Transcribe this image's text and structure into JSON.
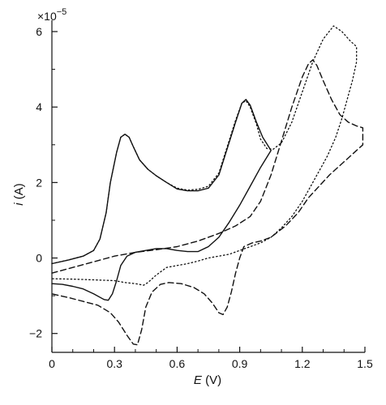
{
  "chart_data": {
    "type": "line",
    "title": "",
    "xlabel": "E",
    "xlabel_unit": "(V)",
    "ylabel": "i",
    "ylabel_unit": "(A)",
    "y_multiplier_base": "×10",
    "y_multiplier_exp": "−5",
    "xlim": [
      0,
      1.5
    ],
    "ylim": [
      -2.5,
      6.3
    ],
    "x_ticks": [
      0,
      0.3,
      0.6,
      0.9,
      1.2,
      1.5
    ],
    "x_tick_labels": [
      "0",
      "0.3",
      "0.6",
      "0.9",
      "1.2",
      "1.5"
    ],
    "y_ticks": [
      -2,
      0,
      2,
      4,
      6
    ],
    "y_tick_labels": [
      "−2",
      "0",
      "2",
      "4",
      "6"
    ],
    "grid": false,
    "legend": "none",
    "series": [
      {
        "style": "solid",
        "color": "#111111",
        "points": [
          [
            0.0,
            -0.15
          ],
          [
            0.08,
            -0.05
          ],
          [
            0.15,
            0.05
          ],
          [
            0.2,
            0.2
          ],
          [
            0.23,
            0.5
          ],
          [
            0.26,
            1.2
          ],
          [
            0.28,
            2.0
          ],
          [
            0.31,
            2.8
          ],
          [
            0.33,
            3.2
          ],
          [
            0.35,
            3.28
          ],
          [
            0.37,
            3.2
          ],
          [
            0.39,
            2.95
          ],
          [
            0.42,
            2.6
          ],
          [
            0.46,
            2.35
          ],
          [
            0.5,
            2.18
          ],
          [
            0.55,
            2.0
          ],
          [
            0.6,
            1.83
          ],
          [
            0.65,
            1.78
          ],
          [
            0.7,
            1.78
          ],
          [
            0.75,
            1.85
          ],
          [
            0.8,
            2.2
          ],
          [
            0.84,
            2.9
          ],
          [
            0.88,
            3.6
          ],
          [
            0.91,
            4.1
          ],
          [
            0.93,
            4.2
          ],
          [
            0.95,
            4.05
          ],
          [
            0.98,
            3.6
          ],
          [
            1.01,
            3.2
          ],
          [
            1.05,
            2.85
          ],
          [
            1.0,
            2.4
          ],
          [
            0.95,
            1.9
          ],
          [
            0.9,
            1.4
          ],
          [
            0.85,
            0.95
          ],
          [
            0.8,
            0.55
          ],
          [
            0.75,
            0.3
          ],
          [
            0.7,
            0.17
          ],
          [
            0.65,
            0.17
          ],
          [
            0.6,
            0.2
          ],
          [
            0.55,
            0.25
          ],
          [
            0.5,
            0.25
          ],
          [
            0.45,
            0.2
          ],
          [
            0.4,
            0.15
          ],
          [
            0.36,
            0.05
          ],
          [
            0.33,
            -0.2
          ],
          [
            0.31,
            -0.6
          ],
          [
            0.29,
            -0.95
          ],
          [
            0.27,
            -1.12
          ],
          [
            0.25,
            -1.1
          ],
          [
            0.2,
            -0.95
          ],
          [
            0.15,
            -0.82
          ],
          [
            0.1,
            -0.75
          ],
          [
            0.05,
            -0.7
          ],
          [
            0.0,
            -0.68
          ]
        ]
      },
      {
        "style": "dotted",
        "color": "#111111",
        "points": [
          [
            0.0,
            -0.15
          ],
          [
            0.08,
            -0.05
          ],
          [
            0.15,
            0.05
          ],
          [
            0.2,
            0.2
          ],
          [
            0.23,
            0.5
          ],
          [
            0.26,
            1.2
          ],
          [
            0.28,
            2.0
          ],
          [
            0.31,
            2.8
          ],
          [
            0.33,
            3.2
          ],
          [
            0.35,
            3.28
          ],
          [
            0.37,
            3.2
          ],
          [
            0.39,
            2.95
          ],
          [
            0.42,
            2.6
          ],
          [
            0.46,
            2.35
          ],
          [
            0.5,
            2.18
          ],
          [
            0.55,
            2.0
          ],
          [
            0.6,
            1.85
          ],
          [
            0.65,
            1.8
          ],
          [
            0.7,
            1.82
          ],
          [
            0.75,
            1.9
          ],
          [
            0.8,
            2.25
          ],
          [
            0.84,
            2.95
          ],
          [
            0.88,
            3.65
          ],
          [
            0.91,
            4.1
          ],
          [
            0.93,
            4.17
          ],
          [
            0.95,
            4.0
          ],
          [
            0.98,
            3.55
          ],
          [
            1.0,
            3.15
          ],
          [
            1.03,
            2.9
          ],
          [
            1.06,
            2.88
          ],
          [
            1.1,
            3.05
          ],
          [
            1.15,
            3.6
          ],
          [
            1.2,
            4.4
          ],
          [
            1.25,
            5.2
          ],
          [
            1.3,
            5.8
          ],
          [
            1.35,
            6.15
          ],
          [
            1.39,
            6.0
          ],
          [
            1.43,
            5.75
          ],
          [
            1.46,
            5.6
          ],
          [
            1.46,
            5.2
          ],
          [
            1.44,
            4.7
          ],
          [
            1.42,
            4.3
          ],
          [
            1.39,
            3.7
          ],
          [
            1.36,
            3.2
          ],
          [
            1.32,
            2.7
          ],
          [
            1.28,
            2.3
          ],
          [
            1.24,
            1.9
          ],
          [
            1.2,
            1.5
          ],
          [
            1.15,
            1.1
          ],
          [
            1.1,
            0.8
          ],
          [
            1.05,
            0.55
          ],
          [
            1.0,
            0.4
          ],
          [
            0.95,
            0.3
          ],
          [
            0.9,
            0.2
          ],
          [
            0.85,
            0.1
          ],
          [
            0.8,
            0.05
          ],
          [
            0.75,
            0.0
          ],
          [
            0.7,
            -0.08
          ],
          [
            0.65,
            -0.15
          ],
          [
            0.6,
            -0.2
          ],
          [
            0.55,
            -0.25
          ],
          [
            0.5,
            -0.45
          ],
          [
            0.46,
            -0.65
          ],
          [
            0.44,
            -0.72
          ],
          [
            0.4,
            -0.68
          ],
          [
            0.35,
            -0.65
          ],
          [
            0.3,
            -0.6
          ],
          [
            0.2,
            -0.58
          ],
          [
            0.1,
            -0.56
          ],
          [
            0.0,
            -0.55
          ]
        ]
      },
      {
        "style": "dashed",
        "color": "#111111",
        "points": [
          [
            0.0,
            -0.4
          ],
          [
            0.1,
            -0.25
          ],
          [
            0.2,
            -0.1
          ],
          [
            0.3,
            0.05
          ],
          [
            0.4,
            0.15
          ],
          [
            0.5,
            0.22
          ],
          [
            0.6,
            0.3
          ],
          [
            0.7,
            0.45
          ],
          [
            0.8,
            0.65
          ],
          [
            0.88,
            0.85
          ],
          [
            0.95,
            1.1
          ],
          [
            1.0,
            1.5
          ],
          [
            1.05,
            2.2
          ],
          [
            1.1,
            3.1
          ],
          [
            1.15,
            4.0
          ],
          [
            1.2,
            4.8
          ],
          [
            1.23,
            5.15
          ],
          [
            1.25,
            5.25
          ],
          [
            1.27,
            5.1
          ],
          [
            1.3,
            4.7
          ],
          [
            1.34,
            4.2
          ],
          [
            1.38,
            3.8
          ],
          [
            1.42,
            3.6
          ],
          [
            1.46,
            3.5
          ],
          [
            1.49,
            3.45
          ],
          [
            1.49,
            3.0
          ],
          [
            1.46,
            2.85
          ],
          [
            1.42,
            2.65
          ],
          [
            1.38,
            2.45
          ],
          [
            1.33,
            2.2
          ],
          [
            1.28,
            1.9
          ],
          [
            1.23,
            1.6
          ],
          [
            1.18,
            1.2
          ],
          [
            1.12,
            0.85
          ],
          [
            1.05,
            0.55
          ],
          [
            1.0,
            0.45
          ],
          [
            0.96,
            0.4
          ],
          [
            0.92,
            0.3
          ],
          [
            0.9,
            0.0
          ],
          [
            0.88,
            -0.4
          ],
          [
            0.86,
            -0.9
          ],
          [
            0.84,
            -1.3
          ],
          [
            0.82,
            -1.5
          ],
          [
            0.8,
            -1.45
          ],
          [
            0.77,
            -1.2
          ],
          [
            0.73,
            -0.95
          ],
          [
            0.68,
            -0.78
          ],
          [
            0.62,
            -0.68
          ],
          [
            0.56,
            -0.65
          ],
          [
            0.52,
            -0.7
          ],
          [
            0.48,
            -0.9
          ],
          [
            0.45,
            -1.3
          ],
          [
            0.43,
            -1.9
          ],
          [
            0.41,
            -2.3
          ],
          [
            0.39,
            -2.28
          ],
          [
            0.36,
            -2.05
          ],
          [
            0.32,
            -1.7
          ],
          [
            0.28,
            -1.45
          ],
          [
            0.22,
            -1.25
          ],
          [
            0.15,
            -1.15
          ],
          [
            0.08,
            -1.05
          ],
          [
            0.0,
            -0.95
          ]
        ]
      }
    ]
  }
}
